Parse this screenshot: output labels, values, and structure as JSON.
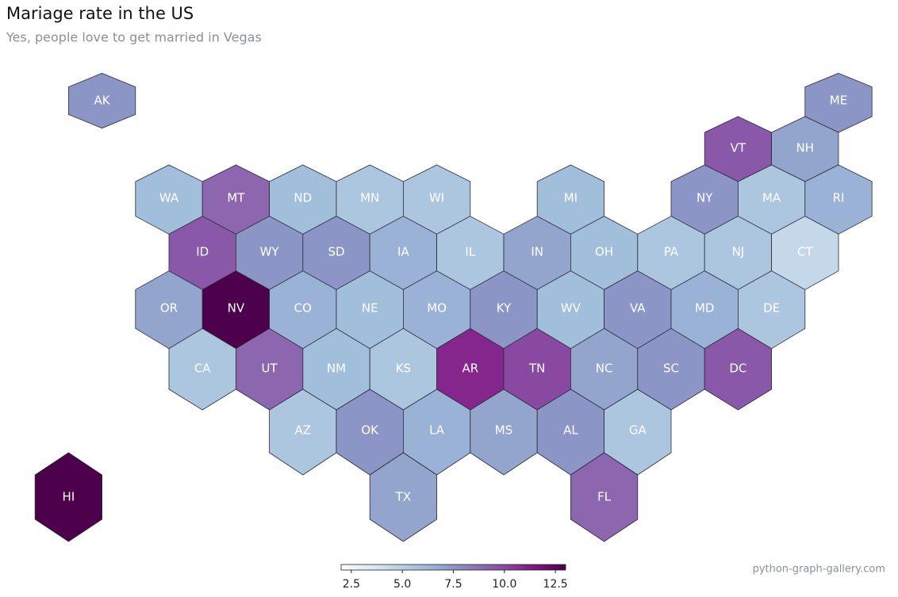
{
  "chart_data": {
    "type": "hexmap",
    "title": "Mariage rate in the US",
    "subtitle": "Yes, people love to get married in Vegas",
    "credit": "python-graph-gallery.com",
    "categories": [
      "AK",
      "ME",
      "VT",
      "NH",
      "WA",
      "MT",
      "ND",
      "MN",
      "WI",
      "MI",
      "NY",
      "MA",
      "RI",
      "ID",
      "WY",
      "SD",
      "IA",
      "IL",
      "IN",
      "OH",
      "PA",
      "NJ",
      "CT",
      "OR",
      "NV",
      "CO",
      "NE",
      "MO",
      "KY",
      "WV",
      "VA",
      "MD",
      "DE",
      "CA",
      "UT",
      "NM",
      "KS",
      "AR",
      "TN",
      "NC",
      "SC",
      "DC",
      "AZ",
      "OK",
      "LA",
      "MS",
      "AL",
      "GA",
      "TX",
      "FL",
      "HI"
    ],
    "values": [
      7.5,
      7.5,
      9.5,
      7,
      6,
      9,
      6,
      5.5,
      5.5,
      6,
      7.5,
      5.5,
      6.5,
      9.5,
      7.5,
      7.5,
      6.5,
      5.5,
      7,
      6,
      5.5,
      5.5,
      4.5,
      7,
      13,
      6.5,
      6,
      6.5,
      7.5,
      6,
      7.5,
      6.5,
      5.5,
      5.5,
      9,
      6,
      5.5,
      11,
      10,
      7,
      7.5,
      9.5,
      5.5,
      7.5,
      6.5,
      7,
      7.5,
      5.5,
      7,
      9,
      13
    ],
    "colormap": "BuPu",
    "clim": [
      2,
      13
    ],
    "cticks": [
      2.5,
      {
        "value": 5,
        "label": "5.0"
      },
      7.5,
      {
        "value": 10,
        "label": "10.0"
      },
      12.5
    ]
  }
}
